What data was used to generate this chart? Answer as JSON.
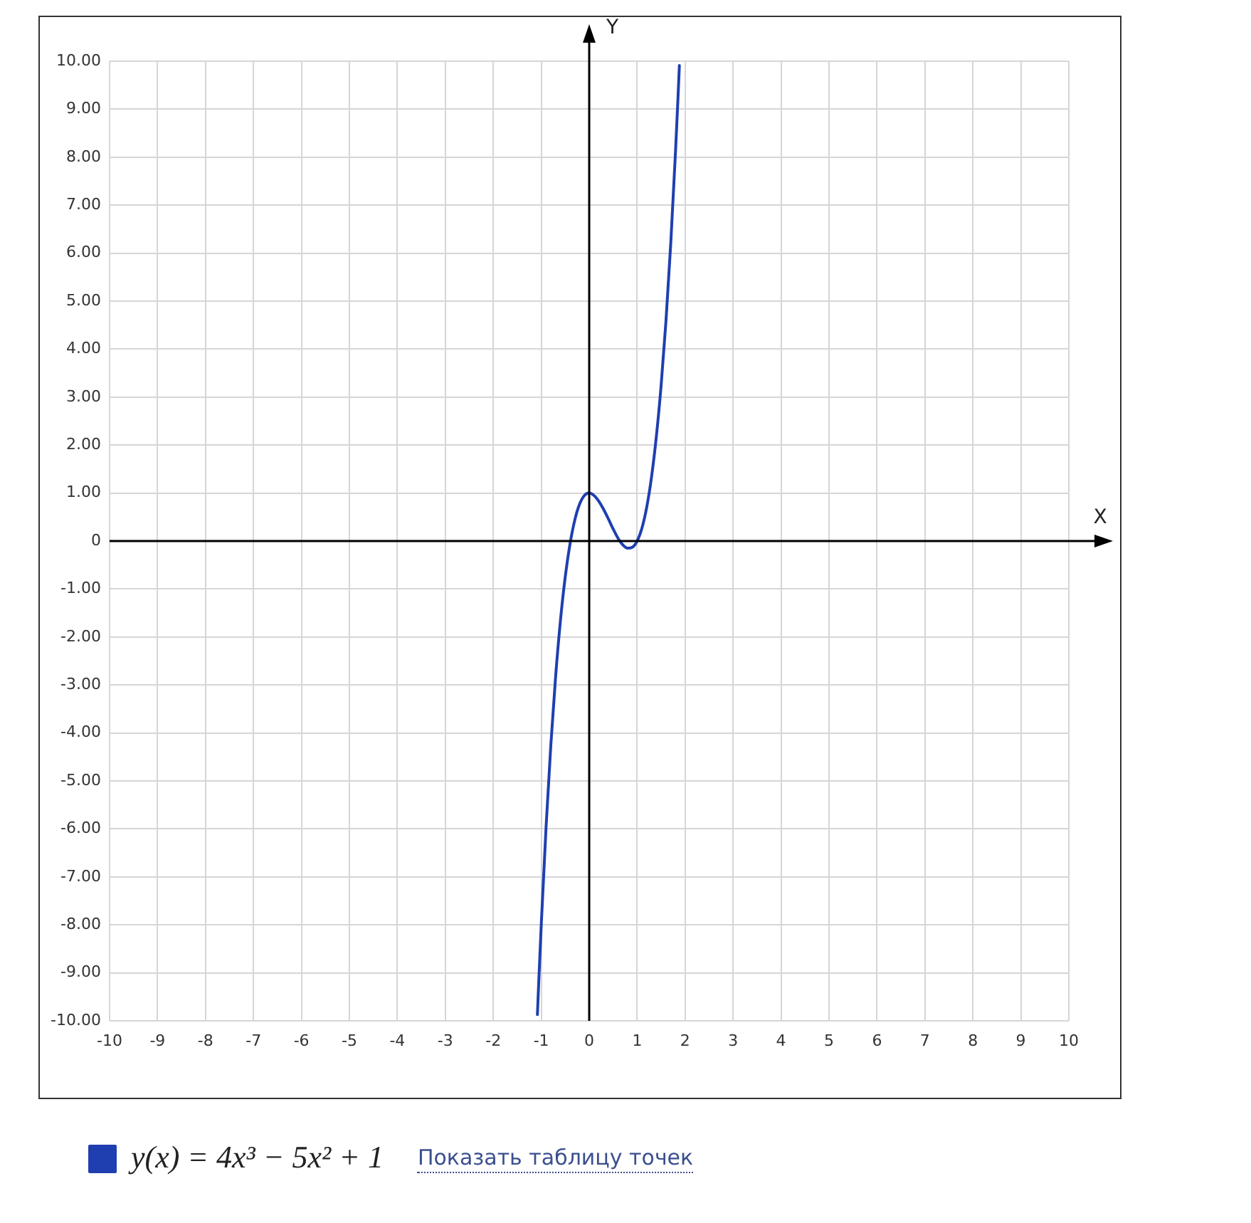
{
  "chart_data": {
    "type": "line",
    "xlabel": "X",
    "ylabel": "Y",
    "annotations": [
      "Показать таблицу точек"
    ],
    "series": [
      {
        "name": "y(x) = 4x³ − 5x² + 1",
        "color": "#1f3fb0",
        "x": [
          -1.08,
          -1.05,
          -1,
          -0.9,
          -0.8,
          -0.7,
          -0.6,
          -0.5,
          -0.4,
          -0.3,
          -0.2,
          -0.1,
          0,
          0.1,
          0.2,
          0.3,
          0.4,
          0.5,
          0.6,
          0.7,
          0.8,
          0.9,
          1,
          1.1,
          1.2,
          1.3,
          1.4,
          1.5,
          1.6,
          1.7,
          1.8,
          1.85,
          1.88
        ],
        "values": [
          -9.87,
          -9.14,
          -8,
          -5.97,
          -4.25,
          -2.82,
          -1.66,
          -0.75,
          -0.06,
          0.44,
          0.77,
          0.95,
          1,
          0.95,
          0.83,
          0.66,
          0.46,
          0.25,
          0.06,
          -0.08,
          -0.15,
          -0.13,
          0,
          0.27,
          0.71,
          1.34,
          2.18,
          3.25,
          4.58,
          6.2,
          8.13,
          9.21,
          9.91
        ]
      }
    ],
    "xlim": [
      -10,
      10
    ],
    "ylim": [
      -10,
      10
    ],
    "xticks": [
      -10,
      -9,
      -8,
      -7,
      -6,
      -5,
      -4,
      -3,
      -2,
      -1,
      0,
      1,
      2,
      3,
      4,
      5,
      6,
      7,
      8,
      9,
      10
    ],
    "yticks": [
      {
        "value": -10,
        "label": "-10.00"
      },
      {
        "value": -9,
        "label": "-9.00"
      },
      {
        "value": -8,
        "label": "-8.00"
      },
      {
        "value": -7,
        "label": "-7.00"
      },
      {
        "value": -6,
        "label": "-6.00"
      },
      {
        "value": -5,
        "label": "-5.00"
      },
      {
        "value": -4,
        "label": "-4.00"
      },
      {
        "value": -3,
        "label": "-3.00"
      },
      {
        "value": -2,
        "label": "-2.00"
      },
      {
        "value": -1,
        "label": "-1.00"
      },
      0,
      {
        "value": 1,
        "label": "1.00"
      },
      {
        "value": 2,
        "label": "2.00"
      },
      {
        "value": 3,
        "label": "3.00"
      },
      {
        "value": 4,
        "label": "4.00"
      },
      {
        "value": 5,
        "label": "5.00"
      },
      {
        "value": 6,
        "label": "6.00"
      },
      {
        "value": 7,
        "label": "7.00"
      },
      {
        "value": 8,
        "label": "8.00"
      },
      {
        "value": 9,
        "label": "9.00"
      },
      {
        "value": 10,
        "label": "10.00"
      }
    ],
    "grid": true,
    "legend": "bottom left",
    "marker": "none",
    "line_style": "solid"
  }
}
